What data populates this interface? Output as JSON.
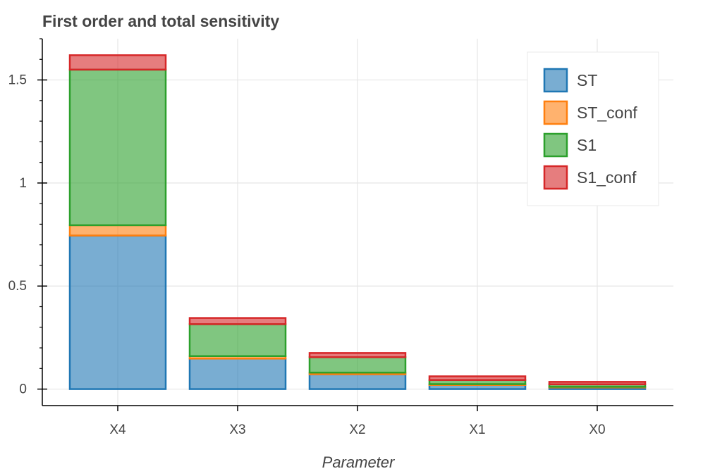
{
  "chart_data": {
    "type": "bar",
    "stacked": true,
    "title": "First order and total sensitivity",
    "xlabel": "Parameter",
    "ylabel": "",
    "categories": [
      "X4",
      "X3",
      "X2",
      "X1",
      "X0"
    ],
    "series": [
      {
        "name": "ST",
        "values": [
          0.745,
          0.148,
          0.072,
          0.02,
          0.008
        ],
        "color": "#1f77b4"
      },
      {
        "name": "ST_conf",
        "values": [
          0.05,
          0.012,
          0.008,
          0.004,
          0.003
        ],
        "color": "#ff7f0e"
      },
      {
        "name": "S1",
        "values": [
          0.755,
          0.155,
          0.075,
          0.02,
          0.012
        ],
        "color": "#2ca02c"
      },
      {
        "name": "S1_conf",
        "values": [
          0.07,
          0.03,
          0.02,
          0.018,
          0.012
        ],
        "color": "#d62728"
      }
    ],
    "ylim": [
      -0.08,
      1.7
    ],
    "yticks": [
      0,
      0.5,
      1,
      1.5
    ],
    "ytick_labels": [
      "0",
      "0.5",
      "1",
      "1.5"
    ],
    "grid": true,
    "legend_position": "top-right"
  }
}
